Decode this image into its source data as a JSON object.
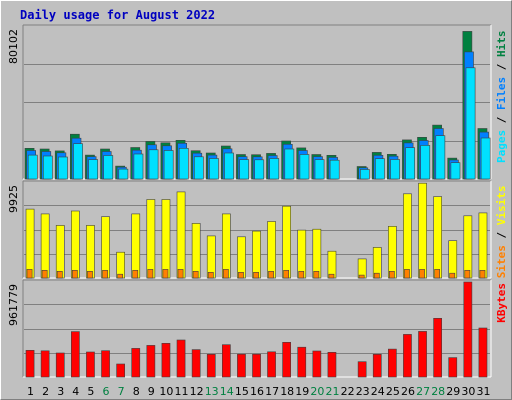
{
  "chart_data": {
    "type": "bar",
    "title": "Daily usage for August 2022",
    "categories": [
      "1",
      "2",
      "3",
      "4",
      "5",
      "6",
      "7",
      "8",
      "9",
      "10",
      "11",
      "12",
      "13",
      "14",
      "15",
      "16",
      "17",
      "18",
      "19",
      "20",
      "21",
      "22",
      "23",
      "24",
      "25",
      "26",
      "27",
      "28",
      "29",
      "30",
      "31"
    ],
    "weekend_days": [
      "6",
      "7",
      "13",
      "14",
      "20",
      "21",
      "27",
      "28"
    ],
    "panels": [
      {
        "name": "hits-files-pages",
        "max_label": "80102",
        "ymax": 80102,
        "axis_label": [
          "Pages",
          "Files",
          "Hits"
        ],
        "series": [
          {
            "name": "Hits",
            "color": "#008040",
            "values": [
              16200,
              15800,
              14800,
              23600,
              12600,
              15800,
              6800,
              16600,
              19800,
              19100,
              20400,
              14900,
              13700,
              17400,
              12900,
              12800,
              13500,
              20000,
              16400,
              12900,
              12500,
              0,
              6600,
              14000,
              13000,
              20600,
              22000,
              28400,
              11000,
              77800,
              26600
            ]
          },
          {
            "name": "Files",
            "color": "#0080ff",
            "values": [
              15000,
              14500,
              13800,
              21500,
              11800,
              14500,
              6200,
              15200,
              18000,
              17500,
              18800,
              13600,
              12600,
              15900,
              11800,
              11700,
              12400,
              18300,
              15000,
              11800,
              11400,
              0,
              5900,
              12500,
              12000,
              19000,
              20300,
              26600,
              10000,
              67000,
              24700
            ]
          },
          {
            "name": "Pages",
            "color": "#00e0ff",
            "values": [
              12600,
              12100,
              11600,
              18600,
              10200,
              12400,
              5200,
              13200,
              15400,
              15000,
              16200,
              11700,
              10800,
              13700,
              10200,
              10100,
              10800,
              15800,
              12900,
              10200,
              9900,
              0,
              5000,
              10700,
              10300,
              16500,
              17700,
              22800,
              8600,
              58600,
              21600
            ]
          }
        ]
      },
      {
        "name": "visits-sites",
        "max_label": "9925",
        "ymax": 9925,
        "axis_label": [
          "Sites",
          "Visits"
        ],
        "series": [
          {
            "name": "Visits",
            "color": "#ffff00",
            "values": [
              7200,
              6700,
              5500,
              7000,
              5500,
              6400,
              2700,
              6700,
              8200,
              8200,
              9000,
              5700,
              4400,
              6700,
              4300,
              4900,
              5900,
              7500,
              5000,
              5100,
              2800,
              0,
              2000,
              3200,
              5400,
              8800,
              9900,
              8500,
              3900,
              6500,
              6800
            ]
          },
          {
            "name": "Sites",
            "color": "#ff8000",
            "values": [
              900,
              800,
              700,
              800,
              700,
              800,
              400,
              800,
              900,
              900,
              900,
              700,
              600,
              900,
              600,
              600,
              700,
              800,
              700,
              700,
              400,
              0,
              300,
              500,
              700,
              900,
              900,
              900,
              500,
              800,
              800
            ]
          }
        ]
      },
      {
        "name": "kbytes",
        "max_label": "961779",
        "ymax": 961779,
        "axis_label": [
          "KBytes"
        ],
        "series": [
          {
            "name": "KBytes",
            "color": "#ff0000",
            "values": [
              270000,
              265000,
              243000,
              460000,
              253000,
              266000,
              132000,
              290000,
              320000,
              341000,
              375000,
              277000,
              230000,
              327000,
              231000,
              231000,
              255000,
              351000,
              302000,
              263000,
              250000,
              0,
              155000,
              230000,
              282000,
              431000,
              462000,
              594000,
              196000,
              961779,
              496000
            ]
          }
        ]
      }
    ]
  }
}
